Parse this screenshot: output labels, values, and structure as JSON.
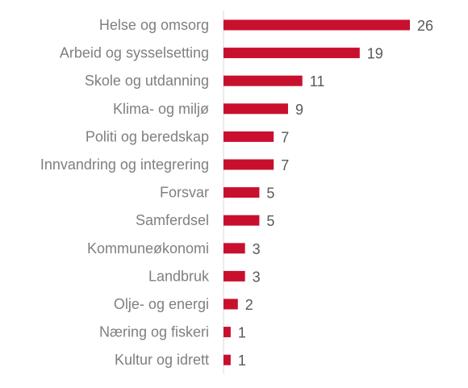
{
  "chart_data": {
    "type": "bar",
    "orientation": "horizontal",
    "categories": [
      "Helse og omsorg",
      "Arbeid og sysselsetting",
      "Skole og utdanning",
      "Klima- og miljø",
      "Politi og beredskap",
      "Innvandring og integrering",
      "Forsvar",
      "Samferdsel",
      "Kommuneøkonomi",
      "Landbruk",
      "Olje- og energi",
      "Næring og fiskeri",
      "Kultur og idrett"
    ],
    "values": [
      26,
      19,
      11,
      9,
      7,
      7,
      5,
      5,
      3,
      3,
      2,
      1,
      1
    ],
    "data_labels": [
      "26",
      "19",
      "11",
      "9",
      "7",
      "7",
      "5",
      "5",
      "3",
      "3",
      "2",
      "1",
      "1"
    ],
    "title": "",
    "xlabel": "",
    "ylabel": "",
    "xlim": [
      0,
      26
    ],
    "grid": false,
    "legend": "none",
    "colors": {
      "bar": "#c8102e",
      "category_text": "#7f7f7f",
      "value_text": "#595959",
      "axis": "#d9d9d9"
    }
  }
}
